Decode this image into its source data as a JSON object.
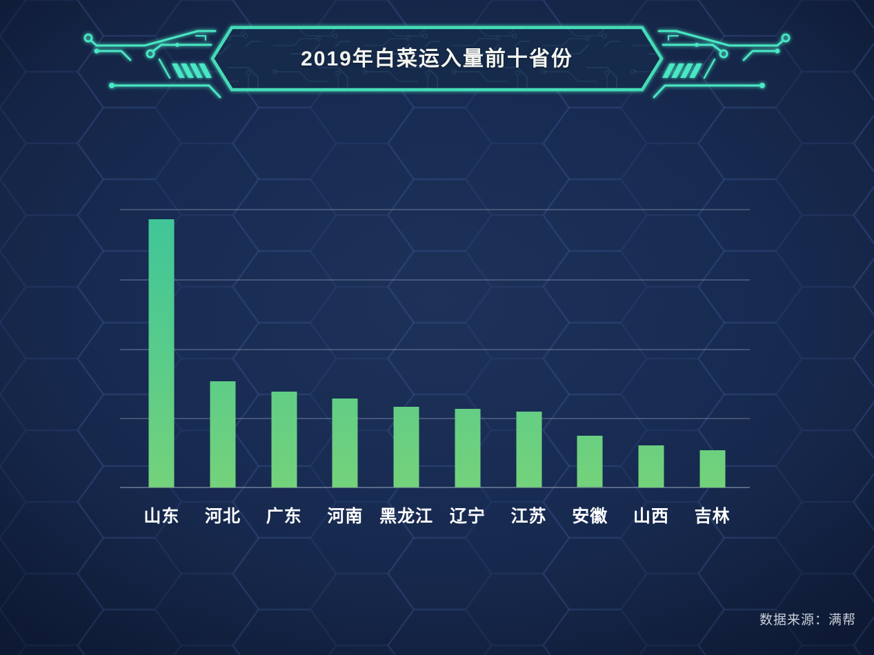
{
  "header": {
    "title": "2019年白菜运入量前十省份",
    "decoration": {
      "style": "tech-circuit-hexagon-banner",
      "accent_color": "#49e8c4",
      "banner_border_color": "#45dcb8",
      "banner_fill_color": "#15294b"
    }
  },
  "chart_data": {
    "type": "bar",
    "title": "2019年白菜运入量前十省份",
    "categories": [
      "山东",
      "河北",
      "广东",
      "河南",
      "黑龙江",
      "辽宁",
      "江苏",
      "安徽",
      "山西",
      "吉林"
    ],
    "values": [
      3.86,
      1.53,
      1.38,
      1.28,
      1.16,
      1.13,
      1.09,
      0.74,
      0.61,
      0.54
    ],
    "value_axis": {
      "labels_visible": false,
      "max": 4.0,
      "gridline_interval": 1.0,
      "note": "无数值刻度标签；数值为按水平网格线间距=1估读的相对高度"
    },
    "xlabel": "",
    "ylabel": "",
    "grid": "horizontal",
    "legend": false,
    "bar_colors": {
      "top": "#3fc59a",
      "bottom": "#74d27b"
    }
  },
  "footer": {
    "source_label": "数据来源：满帮"
  },
  "colors": {
    "background": "#182b52",
    "hex_pattern_line": "#3c5c94",
    "grid_line": "rgba(168,180,202,0.30)",
    "axis_line": "rgba(168,180,202,0.46)",
    "label_text": "#ffffff",
    "title_text": "#f4f6f1",
    "source_text": "#c9d0da",
    "accent_teal": "#49e8c4"
  }
}
